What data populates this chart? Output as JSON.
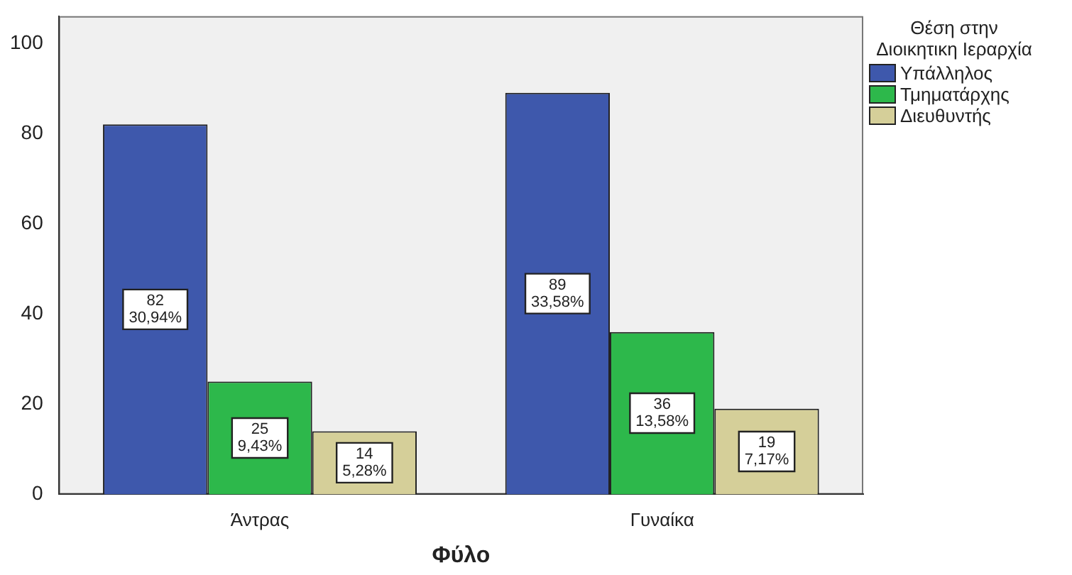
{
  "chart_data": {
    "type": "bar",
    "xlabel": "Φύλο",
    "legend_title": "Θέση στην Διοικητικη Ιεραρχία",
    "categories": [
      "Άντρας",
      "Γυναίκα"
    ],
    "series": [
      {
        "name": "Υπάλληλος",
        "color": "#3e58ac",
        "values": [
          82,
          89
        ],
        "value_labels": [
          "82\n30,94%",
          "89\n33,58%"
        ]
      },
      {
        "name": "Τμηματάρχης",
        "color": "#2db84b",
        "values": [
          25,
          36
        ],
        "value_labels": [
          "25\n9,43%",
          "36\n13,58%"
        ]
      },
      {
        "name": "Διευθυντής",
        "color": "#d5cf99",
        "values": [
          14,
          19
        ],
        "value_labels": [
          "14\n5,28%",
          "19\n7,17%"
        ]
      }
    ],
    "ylim": [
      0,
      106
    ],
    "yticks": [
      0,
      20,
      40,
      60,
      80,
      100
    ],
    "grid": false,
    "legend": "right"
  }
}
